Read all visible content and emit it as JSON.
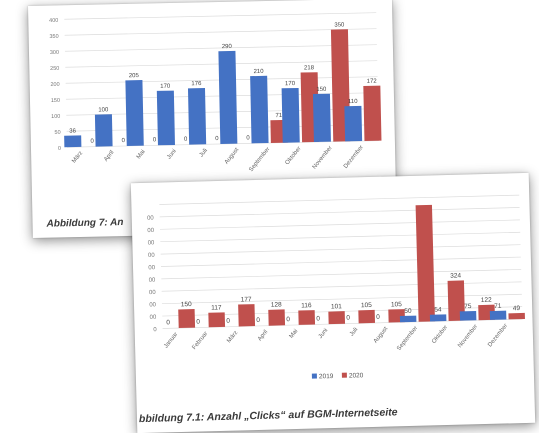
{
  "chart_data": [
    {
      "type": "bar",
      "categories": [
        "März",
        "April",
        "Mai",
        "Juni",
        "Juli",
        "August",
        "September",
        "Oktober",
        "November",
        "Dezember"
      ],
      "series": [
        {
          "values": [
            36,
            100,
            205,
            170,
            176,
            290,
            210,
            170,
            150,
            110
          ],
          "color": "#4472c4"
        },
        {
          "values": [
            0,
            0,
            0,
            0,
            0,
            0,
            71,
            218,
            350,
            172
          ],
          "color": "#c0504d"
        }
      ],
      "value_labels": [
        [
          "36",
          "100",
          "205",
          "170",
          "176",
          "290",
          "210",
          "170",
          "150",
          "110"
        ],
        [
          "0",
          "0",
          "0",
          "0",
          "0",
          "0",
          "71",
          "218",
          "350",
          "172"
        ]
      ],
      "yticks": [
        "0",
        "50",
        "100",
        "150",
        "200",
        "250",
        "300",
        "350",
        "400"
      ],
      "ylim": [
        0,
        400
      ],
      "grid": true
    },
    {
      "type": "bar",
      "categories": [
        "Januar",
        "Februar",
        "März",
        "April",
        "Mai",
        "Juni",
        "Juli",
        "August",
        "September",
        "Oktober",
        "November",
        "Dezember"
      ],
      "series": [
        {
          "name": "2019",
          "values": [
            0,
            0,
            0,
            0,
            0,
            0,
            0,
            0,
            50,
            54,
            75,
            71
          ],
          "color": "#4472c4"
        },
        {
          "name": "2020",
          "values": [
            150,
            117,
            177,
            128,
            116,
            101,
            105,
            105,
            940,
            324,
            122,
            49
          ],
          "color": "#c0504d"
        }
      ],
      "value_labels": [
        [
          "0",
          "0",
          "0",
          "0",
          "0",
          "0",
          "0",
          "0",
          "50",
          "54",
          "75",
          "71"
        ],
        [
          "150",
          "117",
          "177",
          "128",
          "116",
          "101",
          "105",
          "105",
          "",
          "324",
          "122",
          "49"
        ]
      ],
      "yticks": [
        "0",
        "00",
        "00",
        "00",
        "00",
        "00",
        "00",
        "00",
        "00",
        "00",
        ""
      ],
      "ylim": [
        0,
        1000
      ],
      "grid": true,
      "legend": "bottom"
    }
  ],
  "captions": {
    "back": "Abbildung 7: An",
    "front": "bbildung 7.1: Anzahl „Clicks“ auf BGM-Internetseite"
  }
}
